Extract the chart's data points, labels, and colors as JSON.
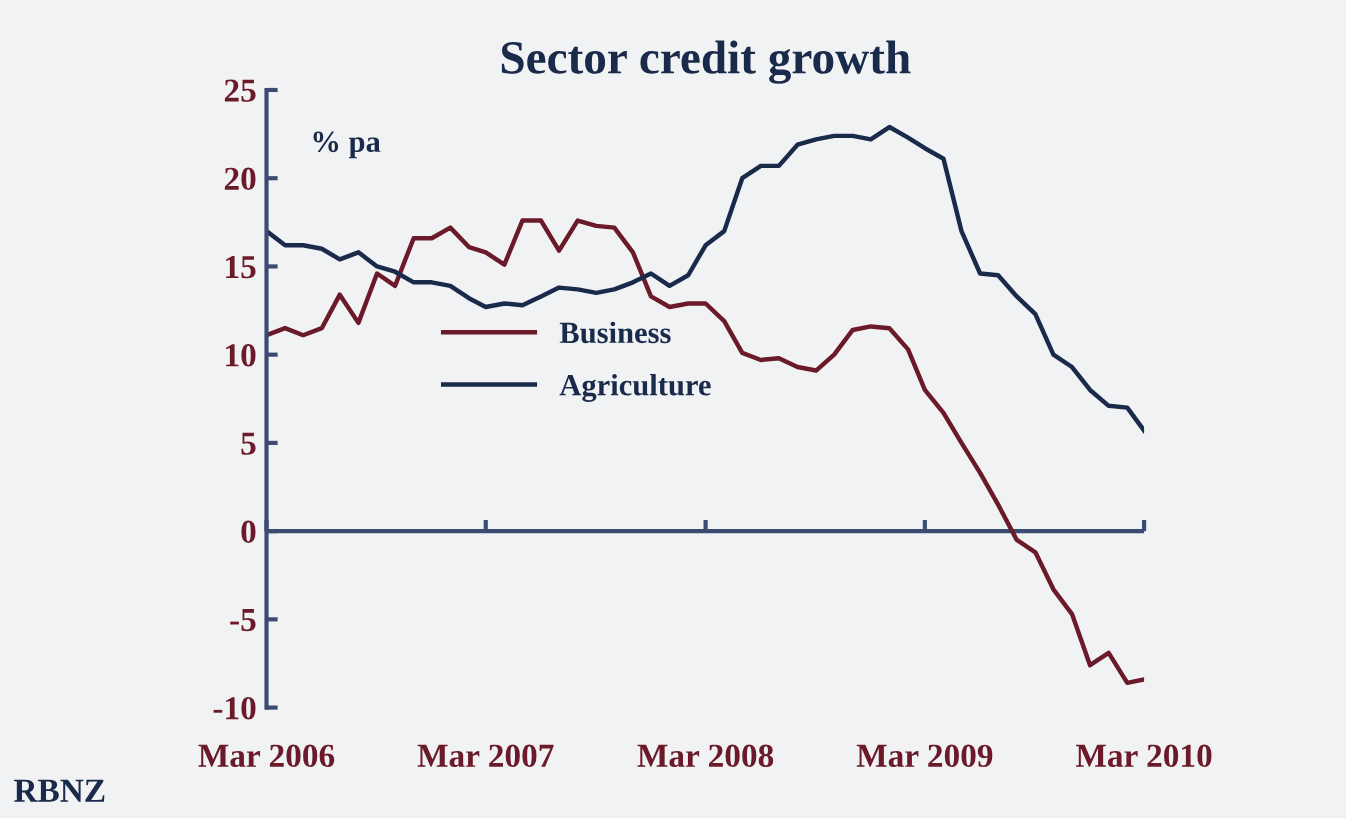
{
  "chart_data": {
    "type": "line",
    "title": "Sector credit growth",
    "ylabel": "% pa",
    "annotations": [
      "RBNZ"
    ],
    "x": [
      "2006-03",
      "2006-04",
      "2006-05",
      "2006-06",
      "2006-07",
      "2006-08",
      "2006-09",
      "2006-10",
      "2006-11",
      "2006-12",
      "2007-01",
      "2007-02",
      "2007-03",
      "2007-04",
      "2007-05",
      "2007-06",
      "2007-07",
      "2007-08",
      "2007-09",
      "2007-10",
      "2007-11",
      "2007-12",
      "2008-01",
      "2008-02",
      "2008-03",
      "2008-04",
      "2008-05",
      "2008-06",
      "2008-07",
      "2008-08",
      "2008-09",
      "2008-10",
      "2008-11",
      "2008-12",
      "2009-01",
      "2009-02",
      "2009-03",
      "2009-04",
      "2009-05",
      "2009-06",
      "2009-07",
      "2009-08",
      "2009-09",
      "2009-10",
      "2009-11",
      "2009-12",
      "2010-01",
      "2010-02",
      "2010-03"
    ],
    "series": [
      {
        "name": "Business",
        "color": "#6b1a2a",
        "values": [
          11.1,
          11.5,
          11.1,
          11.5,
          13.4,
          11.8,
          14.6,
          13.9,
          16.6,
          16.6,
          17.2,
          16.1,
          15.8,
          15.1,
          17.6,
          17.6,
          15.9,
          17.6,
          17.3,
          17.2,
          15.8,
          13.3,
          12.7,
          12.9,
          12.9,
          11.9,
          10.1,
          9.7,
          9.8,
          9.3,
          9.1,
          10.0,
          11.4,
          11.6,
          11.5,
          10.3,
          8.0,
          6.7,
          5.0,
          3.3,
          1.5,
          -0.5,
          -1.2,
          -3.3,
          -4.7,
          -7.6,
          -6.9,
          -8.6,
          -8.4
        ]
      },
      {
        "name": "Agriculture",
        "color": "#1a2a4a",
        "values": [
          17.0,
          16.2,
          16.2,
          16.0,
          15.4,
          15.8,
          15.0,
          14.7,
          14.1,
          14.1,
          13.9,
          13.2,
          12.7,
          12.9,
          12.8,
          13.3,
          13.8,
          13.7,
          13.5,
          13.7,
          14.1,
          14.6,
          13.9,
          14.5,
          16.2,
          17.0,
          20.0,
          20.7,
          20.7,
          21.9,
          22.2,
          22.4,
          22.4,
          22.2,
          22.9,
          22.3,
          21.7,
          21.1,
          17.0,
          14.6,
          14.5,
          13.3,
          12.3,
          10.0,
          9.3,
          8.0,
          7.1,
          7.0,
          5.7
        ]
      }
    ],
    "xlim": [
      "2006-03",
      "2010-03"
    ],
    "xticks": [
      {
        "value": "2006-03",
        "label": "Mar 2006"
      },
      {
        "value": "2007-03",
        "label": "Mar 2007"
      },
      {
        "value": "2008-03",
        "label": "Mar 2008"
      },
      {
        "value": "2009-03",
        "label": "Mar 2009"
      },
      {
        "value": "2010-03",
        "label": "Mar 2010"
      }
    ],
    "ylim": [
      -10,
      25
    ],
    "yticks": [
      -10,
      -5,
      0,
      5,
      10,
      15,
      20,
      25
    ],
    "ref_lines": [
      {
        "axis": "y",
        "value": 0
      }
    ],
    "grid": false,
    "legend": "center",
    "marker": "none",
    "line_style": "solid"
  }
}
